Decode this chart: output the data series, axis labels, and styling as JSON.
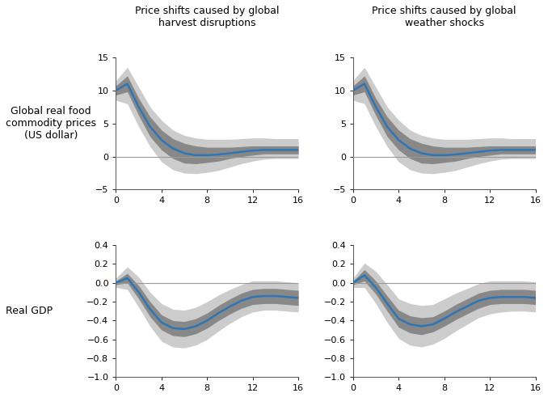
{
  "col_titles": [
    "Price shifts caused by global\nharvest disruptions",
    "Price shifts caused by global\nweather shocks"
  ],
  "row_labels": [
    "Global real food\ncommodity prices\n(US dollar)",
    "Real GDP"
  ],
  "x": [
    0,
    1,
    2,
    3,
    4,
    5,
    6,
    7,
    8,
    9,
    10,
    11,
    12,
    13,
    14,
    15,
    16
  ],
  "food_harvest_mean": [
    10.0,
    11.0,
    7.5,
    4.5,
    2.5,
    1.2,
    0.5,
    0.2,
    0.2,
    0.3,
    0.5,
    0.7,
    0.9,
    1.0,
    1.0,
    1.0,
    1.0
  ],
  "food_harvest_ci68_lo": [
    9.3,
    9.8,
    6.2,
    3.0,
    1.0,
    -0.3,
    -1.0,
    -1.1,
    -0.9,
    -0.7,
    -0.3,
    0.0,
    0.2,
    0.4,
    0.4,
    0.4,
    0.4
  ],
  "food_harvest_ci68_hi": [
    10.7,
    12.2,
    8.8,
    6.0,
    4.0,
    2.7,
    2.0,
    1.6,
    1.4,
    1.4,
    1.4,
    1.5,
    1.6,
    1.6,
    1.6,
    1.6,
    1.6
  ],
  "food_harvest_ci90_lo": [
    8.5,
    8.0,
    4.5,
    1.5,
    -0.8,
    -2.0,
    -2.5,
    -2.6,
    -2.4,
    -2.1,
    -1.6,
    -1.1,
    -0.7,
    -0.4,
    -0.3,
    -0.3,
    -0.3
  ],
  "food_harvest_ci90_hi": [
    11.5,
    13.5,
    10.5,
    7.5,
    5.5,
    4.0,
    3.2,
    2.8,
    2.6,
    2.6,
    2.6,
    2.7,
    2.8,
    2.8,
    2.7,
    2.7,
    2.7
  ],
  "food_weather_mean": [
    10.0,
    11.0,
    7.5,
    4.5,
    2.5,
    1.2,
    0.5,
    0.2,
    0.2,
    0.3,
    0.5,
    0.7,
    0.9,
    1.0,
    1.0,
    1.0,
    1.0
  ],
  "food_weather_ci68_lo": [
    9.3,
    9.8,
    6.2,
    3.0,
    1.0,
    -0.3,
    -1.0,
    -1.1,
    -0.9,
    -0.7,
    -0.3,
    0.0,
    0.2,
    0.4,
    0.4,
    0.4,
    0.4
  ],
  "food_weather_ci68_hi": [
    10.7,
    12.2,
    8.8,
    6.0,
    4.0,
    2.7,
    2.0,
    1.6,
    1.4,
    1.4,
    1.4,
    1.5,
    1.6,
    1.6,
    1.6,
    1.6,
    1.6
  ],
  "food_weather_ci90_lo": [
    8.5,
    8.0,
    4.5,
    1.5,
    -0.8,
    -2.0,
    -2.5,
    -2.6,
    -2.4,
    -2.1,
    -1.6,
    -1.1,
    -0.7,
    -0.4,
    -0.3,
    -0.3,
    -0.3
  ],
  "food_weather_ci90_hi": [
    11.5,
    13.5,
    10.5,
    7.5,
    5.5,
    4.0,
    3.2,
    2.8,
    2.6,
    2.6,
    2.6,
    2.7,
    2.8,
    2.8,
    2.7,
    2.7,
    2.7
  ],
  "gdp_harvest_mean": [
    0.0,
    0.05,
    -0.1,
    -0.28,
    -0.42,
    -0.48,
    -0.49,
    -0.46,
    -0.4,
    -0.32,
    -0.25,
    -0.19,
    -0.15,
    -0.14,
    -0.14,
    -0.15,
    -0.16
  ],
  "gdp_harvest_ci68_lo": [
    -0.02,
    0.0,
    -0.17,
    -0.36,
    -0.5,
    -0.56,
    -0.57,
    -0.54,
    -0.48,
    -0.4,
    -0.33,
    -0.27,
    -0.23,
    -0.22,
    -0.22,
    -0.23,
    -0.24
  ],
  "gdp_harvest_ci68_hi": [
    0.02,
    0.1,
    -0.03,
    -0.2,
    -0.34,
    -0.4,
    -0.41,
    -0.38,
    -0.32,
    -0.24,
    -0.17,
    -0.11,
    -0.07,
    -0.06,
    -0.06,
    -0.07,
    -0.08
  ],
  "gdp_harvest_ci90_lo": [
    -0.05,
    -0.07,
    -0.26,
    -0.46,
    -0.62,
    -0.68,
    -0.69,
    -0.66,
    -0.6,
    -0.51,
    -0.43,
    -0.36,
    -0.31,
    -0.29,
    -0.29,
    -0.3,
    -0.31
  ],
  "gdp_harvest_ci90_hi": [
    0.05,
    0.17,
    0.06,
    -0.1,
    -0.22,
    -0.28,
    -0.29,
    -0.26,
    -0.2,
    -0.13,
    -0.07,
    -0.02,
    0.02,
    0.02,
    0.02,
    0.01,
    0.0
  ],
  "gdp_weather_mean": [
    0.0,
    0.08,
    -0.05,
    -0.22,
    -0.38,
    -0.44,
    -0.46,
    -0.44,
    -0.38,
    -0.31,
    -0.25,
    -0.19,
    -0.16,
    -0.15,
    -0.15,
    -0.15,
    -0.16
  ],
  "gdp_weather_ci68_lo": [
    -0.02,
    0.02,
    -0.12,
    -0.3,
    -0.47,
    -0.53,
    -0.55,
    -0.52,
    -0.46,
    -0.39,
    -0.33,
    -0.27,
    -0.23,
    -0.22,
    -0.22,
    -0.22,
    -0.23
  ],
  "gdp_weather_ci68_hi": [
    0.02,
    0.14,
    0.02,
    -0.14,
    -0.29,
    -0.35,
    -0.37,
    -0.36,
    -0.3,
    -0.23,
    -0.17,
    -0.11,
    -0.08,
    -0.07,
    -0.07,
    -0.07,
    -0.08
  ],
  "gdp_weather_ci90_lo": [
    -0.05,
    -0.05,
    -0.22,
    -0.42,
    -0.59,
    -0.66,
    -0.68,
    -0.65,
    -0.59,
    -0.51,
    -0.44,
    -0.37,
    -0.33,
    -0.31,
    -0.3,
    -0.3,
    -0.31
  ],
  "gdp_weather_ci90_hi": [
    0.05,
    0.21,
    0.12,
    -0.02,
    -0.17,
    -0.22,
    -0.24,
    -0.23,
    -0.17,
    -0.11,
    -0.06,
    -0.01,
    0.02,
    0.02,
    0.02,
    0.02,
    0.01
  ],
  "line_color": "#2E75B6",
  "ci68_color": "#888888",
  "ci90_color": "#CCCCCC",
  "zero_line_color": "#999999",
  "background_color": "#ffffff",
  "xticks": [
    0,
    4,
    8,
    12,
    16
  ],
  "food_ylim": [
    -5,
    15
  ],
  "food_yticks": [
    -5,
    0,
    5,
    10,
    15
  ],
  "gdp_ylim": [
    -1.0,
    0.4
  ],
  "gdp_yticks": [
    -1.0,
    -0.8,
    -0.6,
    -0.4,
    -0.2,
    0.0,
    0.2,
    0.4
  ],
  "line_width": 1.8,
  "title_fontsize": 9.0,
  "label_fontsize": 9.0,
  "tick_fontsize": 8.0
}
